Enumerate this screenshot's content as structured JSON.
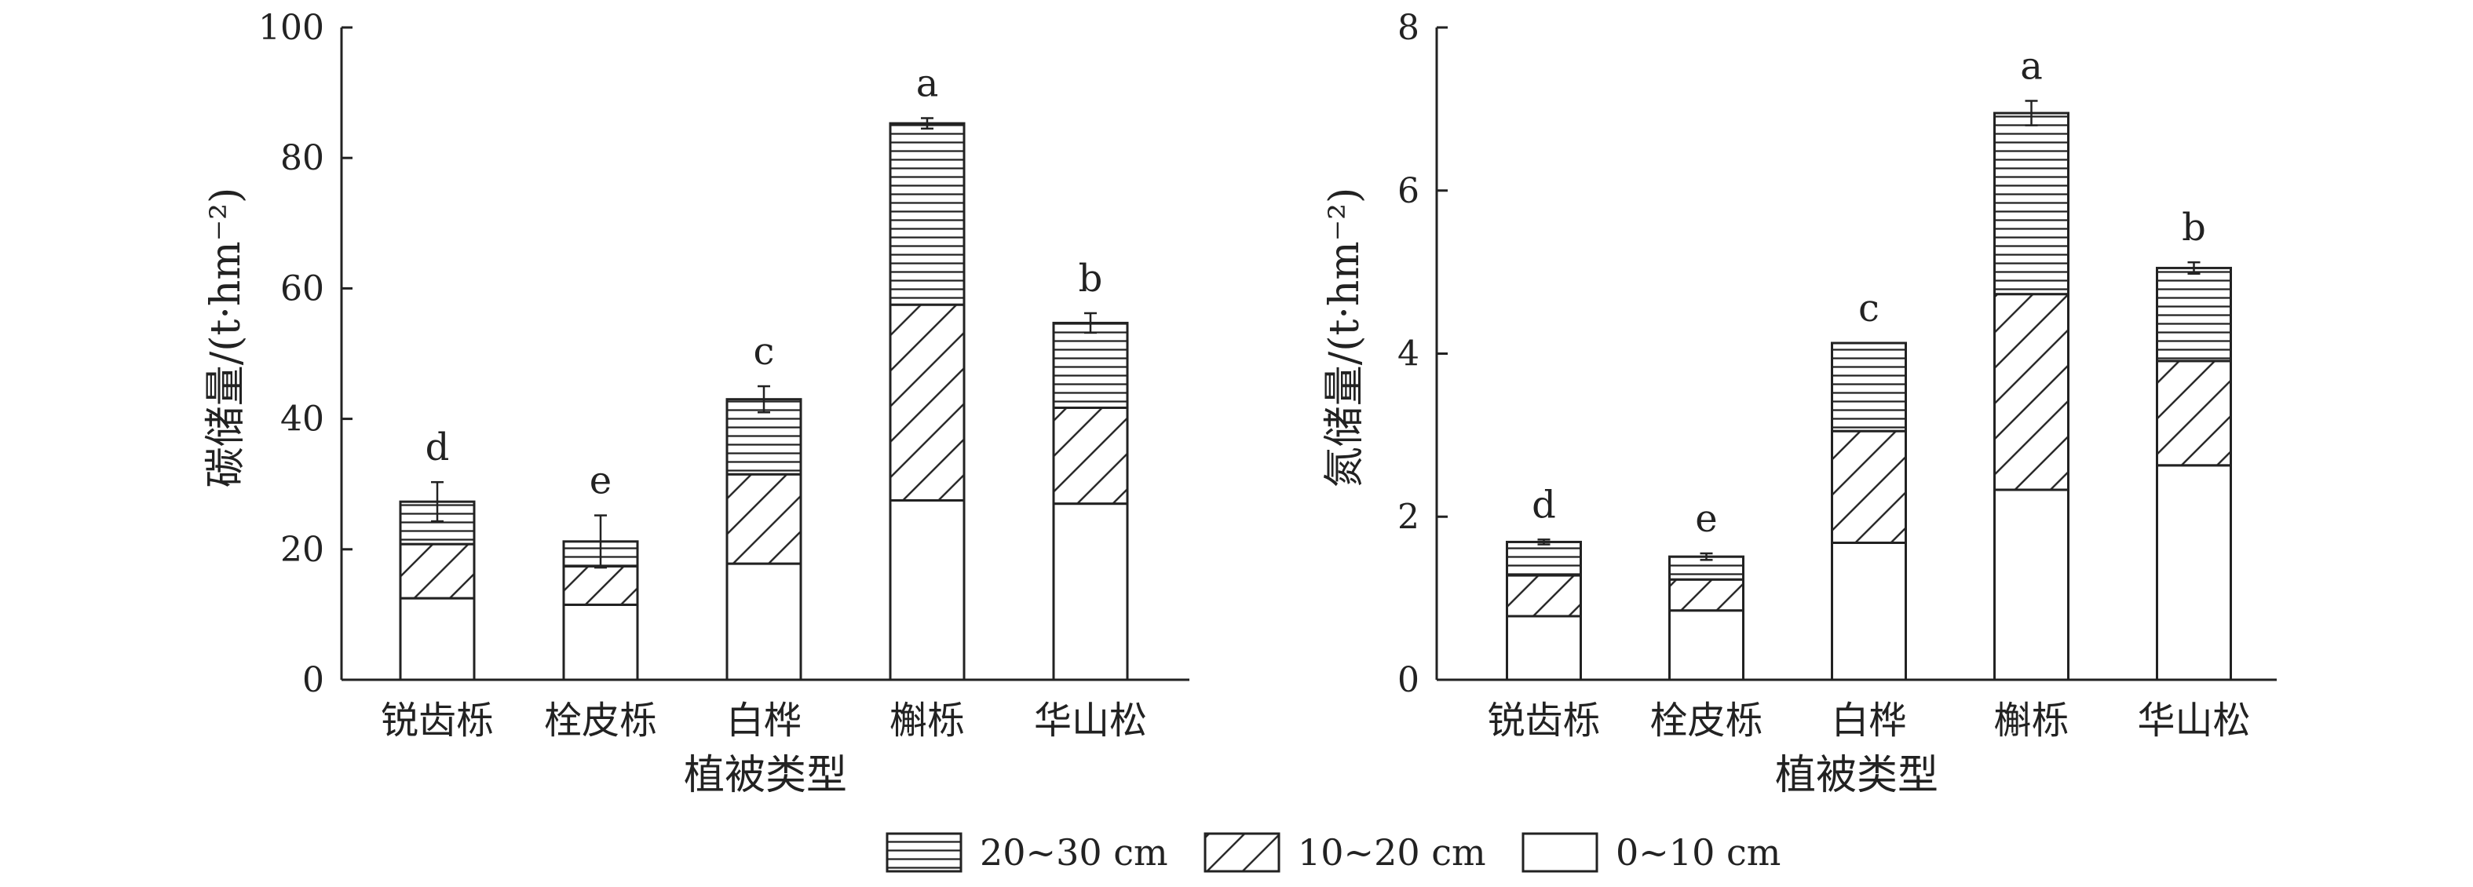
{
  "chart_data": [
    {
      "type": "bar",
      "stacked": true,
      "categories": [
        "锐齿栎",
        "栓皮栎",
        "白桦",
        "槲栎",
        "华山松"
      ],
      "xlabel": "植被类型",
      "ylabel": "碳储量/(t·hm⁻²)",
      "ylim": [
        0,
        100
      ],
      "yticks": [
        "0",
        "20",
        "40",
        "60",
        "80",
        "100"
      ],
      "series": [
        {
          "name": "0~10 cm",
          "values": [
            12.5,
            11.5,
            17.8,
            27.5,
            27.0
          ]
        },
        {
          "name": "10~20 cm",
          "values": [
            8.3,
            5.9,
            13.7,
            30.0,
            14.7
          ]
        },
        {
          "name": "20~30 cm",
          "values": [
            6.5,
            3.8,
            11.5,
            27.8,
            13.0
          ]
        }
      ],
      "totals": [
        27.3,
        21.2,
        43.0,
        85.3,
        54.7
      ],
      "errors": [
        3.0,
        4.0,
        2.0,
        0.8,
        1.5
      ],
      "significance": [
        "d",
        "e",
        "c",
        "a",
        "b"
      ]
    },
    {
      "type": "bar",
      "stacked": true,
      "categories": [
        "锐齿栎",
        "栓皮栎",
        "白桦",
        "槲栎",
        "华山松"
      ],
      "xlabel": "植被类型",
      "ylabel": "氮储量/(t·hm⁻²)",
      "ylim": [
        0,
        8
      ],
      "yticks": [
        "0",
        "2",
        "4",
        "6",
        "8"
      ],
      "series": [
        {
          "name": "0~10 cm",
          "values": [
            0.78,
            0.85,
            1.68,
            2.33,
            2.63
          ]
        },
        {
          "name": "10~20 cm",
          "values": [
            0.5,
            0.38,
            1.37,
            2.4,
            1.28
          ]
        },
        {
          "name": "20~30 cm",
          "values": [
            0.41,
            0.28,
            1.08,
            2.22,
            1.14
          ]
        }
      ],
      "totals": [
        1.69,
        1.51,
        4.13,
        6.95,
        5.05
      ],
      "errors": [
        0.03,
        0.04,
        0.0,
        0.15,
        0.07
      ],
      "significance": [
        "d",
        "e",
        "c",
        "a",
        "b"
      ]
    }
  ],
  "legend": [
    {
      "name": "20~30 cm",
      "pattern": "horizontal-lines"
    },
    {
      "name": "10~20 cm",
      "pattern": "diagonal-hatch"
    },
    {
      "name": "0~10 cm",
      "pattern": "blank"
    }
  ],
  "colors": {
    "ink": "#222222",
    "background": "#ffffff"
  }
}
